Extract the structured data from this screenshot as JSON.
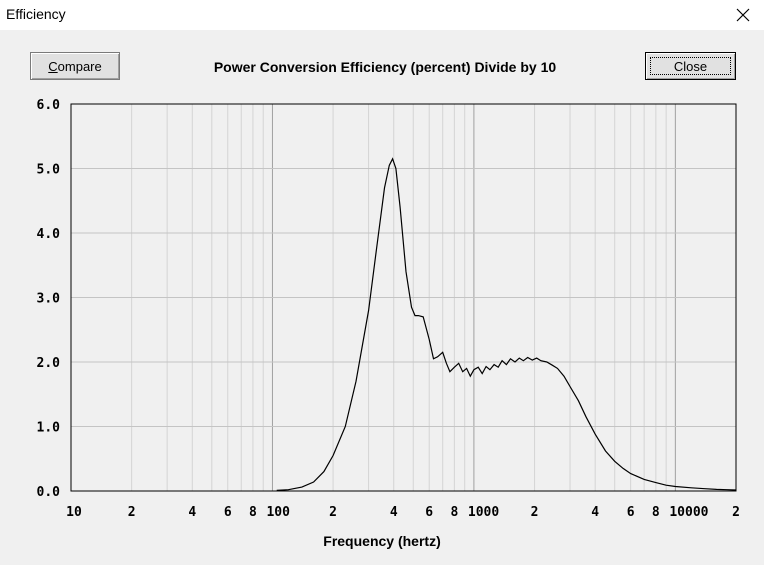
{
  "window": {
    "title": "Efficiency"
  },
  "buttons": {
    "compare_prefix": "C",
    "compare_rest": "ompare",
    "close_label": "Close"
  },
  "chart_data": {
    "type": "line",
    "title": "Power Conversion Efficiency (percent)   Divide by 10",
    "xlabel": "Frequency (hertz)",
    "ylabel": "",
    "x_scale": "log",
    "xlim": [
      10,
      20000
    ],
    "ylim": [
      0,
      6
    ],
    "grid": true,
    "yticks": [
      "0.0",
      "1.0",
      "2.0",
      "3.0",
      "4.0",
      "5.0",
      "6.0"
    ],
    "xticks": [
      {
        "v": 10,
        "label": "10"
      },
      {
        "v": 20,
        "label": "2"
      },
      {
        "v": 40,
        "label": "4"
      },
      {
        "v": 60,
        "label": "6"
      },
      {
        "v": 80,
        "label": "8"
      },
      {
        "v": 100,
        "label": "100"
      },
      {
        "v": 200,
        "label": "2"
      },
      {
        "v": 400,
        "label": "4"
      },
      {
        "v": 600,
        "label": "6"
      },
      {
        "v": 800,
        "label": "8"
      },
      {
        "v": 1000,
        "label": "1000"
      },
      {
        "v": 2000,
        "label": "2"
      },
      {
        "v": 4000,
        "label": "4"
      },
      {
        "v": 6000,
        "label": "6"
      },
      {
        "v": 8000,
        "label": "8"
      },
      {
        "v": 10000,
        "label": "10000"
      },
      {
        "v": 20000,
        "label": "2"
      }
    ],
    "series": [
      {
        "color": "#000000",
        "x": [
          105,
          120,
          140,
          160,
          180,
          200,
          230,
          260,
          300,
          330,
          360,
          380,
          395,
          410,
          430,
          460,
          490,
          510,
          530,
          560,
          600,
          630,
          660,
          700,
          730,
          760,
          800,
          840,
          880,
          920,
          960,
          1000,
          1050,
          1100,
          1150,
          1200,
          1260,
          1320,
          1380,
          1450,
          1520,
          1600,
          1680,
          1760,
          1850,
          1950,
          2050,
          2150,
          2300,
          2450,
          2600,
          2800,
          3000,
          3300,
          3600,
          4000,
          4500,
          5000,
          5500,
          6000,
          7000,
          8000,
          9000,
          10000,
          12000,
          14000,
          16000,
          18000,
          20000
        ],
        "y": [
          0.01,
          0.02,
          0.06,
          0.14,
          0.3,
          0.55,
          1.0,
          1.7,
          2.8,
          3.8,
          4.7,
          5.05,
          5.15,
          5.0,
          4.4,
          3.4,
          2.85,
          2.72,
          2.72,
          2.7,
          2.35,
          2.05,
          2.08,
          2.15,
          1.98,
          1.85,
          1.92,
          1.98,
          1.85,
          1.9,
          1.78,
          1.88,
          1.92,
          1.82,
          1.93,
          1.88,
          1.96,
          1.92,
          2.02,
          1.96,
          2.05,
          2.0,
          2.06,
          2.02,
          2.07,
          2.03,
          2.06,
          2.02,
          2.0,
          1.95,
          1.9,
          1.78,
          1.62,
          1.4,
          1.15,
          0.88,
          0.62,
          0.46,
          0.35,
          0.27,
          0.18,
          0.13,
          0.09,
          0.07,
          0.05,
          0.035,
          0.025,
          0.02,
          0.015
        ]
      }
    ]
  }
}
